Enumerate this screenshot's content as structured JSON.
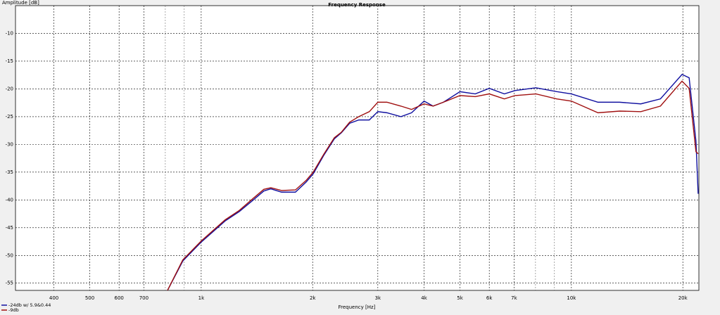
{
  "chart_data": {
    "type": "line",
    "title": "Frequency Response",
    "x_label": "Frequency [Hz]",
    "y_label": "Amplitude [dB]",
    "x_scale": "log",
    "grid": true,
    "x": [
      811,
      892,
      1000,
      1160,
      1267,
      1383,
      1476,
      1542,
      1648,
      1797,
      1920,
      2007,
      2142,
      2289,
      2392,
      2517,
      2665,
      2845,
      3000,
      3174,
      3463,
      3700,
      4000,
      4230,
      4510,
      5000,
      5500,
      6000,
      6590,
      7040,
      8020,
      9130,
      10000,
      11800,
      13500,
      15400,
      17400,
      19900,
      20800,
      21700,
      22000
    ],
    "series": [
      {
        "name": "-24db w/ 5.9&0.44",
        "color": "#1010a0",
        "values": [
          -56.3,
          -51.0,
          -47.6,
          -43.8,
          -42.1,
          -40.0,
          -38.4,
          -38.0,
          -38.6,
          -38.6,
          -36.8,
          -35.3,
          -32.0,
          -29.0,
          -27.9,
          -26.2,
          -25.6,
          -25.6,
          -24.1,
          -24.3,
          -25.0,
          -24.3,
          -22.2,
          -23.1,
          -22.4,
          -20.5,
          -20.9,
          -19.9,
          -20.9,
          -20.3,
          -19.8,
          -20.5,
          -20.9,
          -22.4,
          -22.4,
          -22.7,
          -21.8,
          -17.4,
          -18.0,
          -29.4,
          -38.9
        ]
      },
      {
        "name": "-9db",
        "color": "#a01010",
        "values": [
          -56.3,
          -50.8,
          -47.4,
          -43.6,
          -41.9,
          -39.7,
          -38.1,
          -37.8,
          -38.3,
          -38.2,
          -36.5,
          -35.0,
          -31.8,
          -28.8,
          -27.8,
          -26.0,
          -25.0,
          -24.1,
          -22.4,
          -22.4,
          -23.1,
          -23.7,
          -22.7,
          -23.1,
          -22.4,
          -21.2,
          -21.4,
          -20.9,
          -21.8,
          -21.2,
          -20.9,
          -21.8,
          -22.2,
          -24.3,
          -24.0,
          -24.1,
          -23.1,
          -18.6,
          -19.9,
          -31.3,
          -31.7
        ]
      }
    ],
    "xlim": [
      315,
      22100
    ],
    "xticks": [
      400,
      500,
      600,
      700,
      {
        "value": 1000,
        "label": "1k"
      },
      {
        "value": 2000,
        "label": "2k"
      },
      {
        "value": 3000,
        "label": "3k"
      },
      {
        "value": 4000,
        "label": "4k"
      },
      {
        "value": 5000,
        "label": "5k"
      },
      {
        "value": 6000,
        "label": "6k"
      },
      {
        "value": 7000,
        "label": "7k"
      },
      {
        "value": 10000,
        "label": "10k"
      },
      {
        "value": 20000,
        "label": "20k"
      }
    ],
    "xminorticks": [
      800,
      900,
      8000,
      9000
    ],
    "ylim": [
      -56.3,
      -5
    ],
    "yticks": [
      -55,
      -50,
      -45,
      -40,
      -35,
      -30,
      -25,
      -20,
      -15,
      -10
    ]
  }
}
